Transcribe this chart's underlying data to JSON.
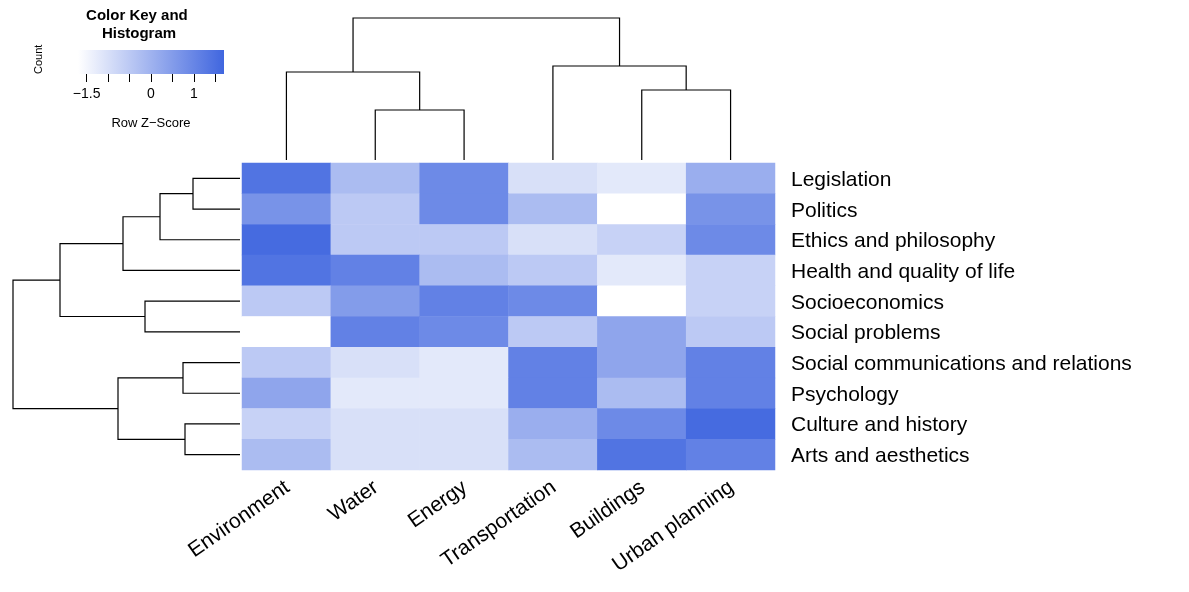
{
  "chart_data": {
    "type": "heatmap",
    "categories": [
      "Environment",
      "Water",
      "Energy",
      "Transportation",
      "Buildings",
      "Urban planning"
    ],
    "y_categories": [
      "Legislation",
      "Politics",
      "Ethics and philosophy",
      "Health and quality of life",
      "Socioeconomics",
      "Social problems",
      "Social communications and relations",
      "Psychology",
      "Culture and history",
      "Arts and aesthetics"
    ],
    "cells": [
      [
        1.4,
        -0.2,
        0.9,
        -1.0,
        -1.2,
        0.1
      ],
      [
        0.7,
        -0.5,
        0.9,
        -0.2,
        -1.7,
        0.7
      ],
      [
        1.6,
        -0.5,
        -0.5,
        -1.0,
        -0.7,
        0.9
      ],
      [
        1.4,
        1.1,
        -0.2,
        -0.5,
        -1.2,
        -0.7
      ],
      [
        -0.5,
        0.5,
        1.1,
        0.9,
        -1.7,
        -0.7
      ],
      [
        -1.7,
        1.1,
        0.9,
        -0.5,
        0.3,
        -0.5
      ],
      [
        -0.5,
        -1.0,
        -1.2,
        1.1,
        0.3,
        1.1
      ],
      [
        0.3,
        -1.2,
        -1.2,
        1.1,
        -0.2,
        1.1
      ],
      [
        -0.7,
        -1.0,
        -1.0,
        0.1,
        0.9,
        1.6
      ],
      [
        -0.2,
        -1.0,
        -1.0,
        -0.2,
        1.4,
        1.1
      ]
    ],
    "clim": [
      -1.7,
      1.7
    ],
    "cticks": [
      -1.5,
      {
        "value": -1,
        "label": null
      },
      {
        "value": -0.5,
        "label": null
      },
      0,
      {
        "value": 0.5,
        "label": null
      },
      1,
      {
        "value": 1.5,
        "label": null
      }
    ],
    "clabel": "Row Z−Score",
    "annotations": [
      "Color Key and Histogram",
      "Count"
    ]
  }
}
